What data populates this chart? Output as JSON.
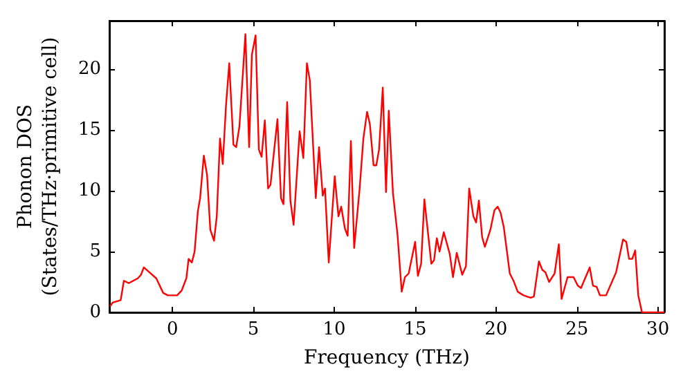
{
  "chart_data": {
    "type": "line",
    "xlabel": "Frequency (THz)",
    "ylabel": "Phonon DOS\n(States/THz·primitive cell)",
    "xlim": [
      -3.9,
      30.4
    ],
    "xticks": [
      0,
      5,
      10,
      15,
      20,
      25,
      30
    ],
    "ylim": [
      0,
      24
    ],
    "yticks": [
      0,
      5,
      10,
      15,
      20
    ],
    "marker": "none",
    "line_style": "solid",
    "series": [
      {
        "color": "#ff0000",
        "x": [
          -3.86,
          -3.7,
          -3.2,
          -3.0,
          -2.7,
          -2.14,
          -1.94,
          -1.77,
          -1.43,
          -1.0,
          -0.57,
          -0.29,
          0.29,
          0.57,
          0.86,
          1.0,
          1.2,
          1.37,
          1.57,
          1.71,
          1.94,
          2.14,
          2.34,
          2.57,
          2.74,
          2.94,
          3.11,
          3.31,
          3.51,
          3.77,
          3.94,
          4.14,
          4.51,
          4.74,
          4.91,
          5.14,
          5.34,
          5.51,
          5.71,
          5.91,
          6.06,
          6.49,
          6.71,
          6.86,
          7.09,
          7.29,
          7.49,
          7.86,
          8.09,
          8.31,
          8.49,
          8.86,
          9.06,
          9.29,
          9.43,
          9.66,
          10.03,
          10.26,
          10.43,
          10.66,
          10.83,
          11.03,
          11.23,
          11.57,
          11.8,
          12.03,
          12.2,
          12.43,
          12.6,
          12.77,
          13.0,
          13.2,
          13.37,
          13.63,
          13.91,
          14.17,
          14.37,
          14.6,
          15.0,
          15.17,
          15.37,
          15.57,
          16.0,
          16.17,
          16.34,
          16.51,
          16.77,
          17.14,
          17.34,
          17.57,
          17.91,
          18.14,
          18.34,
          18.6,
          18.77,
          18.94,
          19.14,
          19.31,
          19.65,
          19.9,
          20.1,
          20.28,
          20.48,
          20.85,
          21.08,
          21.34,
          21.7,
          22.14,
          22.34,
          22.65,
          22.86,
          23.05,
          23.28,
          23.62,
          23.88,
          24.05,
          24.42,
          24.79,
          25.05,
          25.25,
          25.79,
          25.99,
          26.22,
          26.42,
          26.8,
          27.42,
          27.85,
          28.05,
          28.22,
          28.42,
          28.6,
          28.79,
          29.02,
          30.4
        ],
        "values": [
          0.5,
          0.8,
          1.0,
          2.6,
          2.4,
          2.8,
          3.1,
          3.7,
          3.3,
          2.8,
          1.6,
          1.4,
          1.4,
          1.8,
          2.8,
          4.4,
          4.1,
          5.0,
          8.3,
          9.4,
          12.9,
          11.3,
          6.8,
          5.9,
          7.9,
          14.3,
          12.2,
          17.0,
          20.5,
          13.8,
          13.6,
          15.3,
          22.9,
          13.6,
          21.2,
          22.8,
          13.4,
          12.8,
          15.8,
          10.2,
          10.5,
          15.9,
          9.4,
          8.9,
          17.3,
          9.2,
          7.2,
          14.9,
          12.7,
          20.5,
          19.1,
          9.4,
          13.6,
          9.6,
          10.2,
          4.1,
          11.2,
          7.9,
          8.7,
          6.9,
          6.3,
          14.1,
          5.3,
          10.2,
          14.3,
          16.5,
          15.5,
          12.1,
          12.1,
          13.4,
          18.5,
          9.9,
          16.6,
          9.8,
          6.4,
          1.7,
          2.9,
          3.2,
          5.8,
          3.0,
          4.0,
          9.3,
          4.0,
          4.3,
          6.1,
          5.0,
          6.6,
          4.8,
          2.9,
          4.9,
          3.1,
          3.8,
          10.2,
          7.9,
          7.4,
          9.2,
          6.2,
          5.4,
          6.8,
          8.4,
          8.7,
          8.2,
          7.0,
          3.2,
          2.6,
          1.7,
          1.4,
          1.2,
          1.3,
          4.2,
          3.5,
          3.3,
          2.5,
          3.2,
          5.6,
          1.1,
          2.9,
          2.9,
          2.2,
          2.0,
          3.7,
          2.2,
          2.1,
          1.4,
          1.4,
          3.3,
          6.0,
          5.8,
          4.4,
          4.4,
          5.1,
          1.4,
          0,
          0
        ]
      }
    ]
  }
}
